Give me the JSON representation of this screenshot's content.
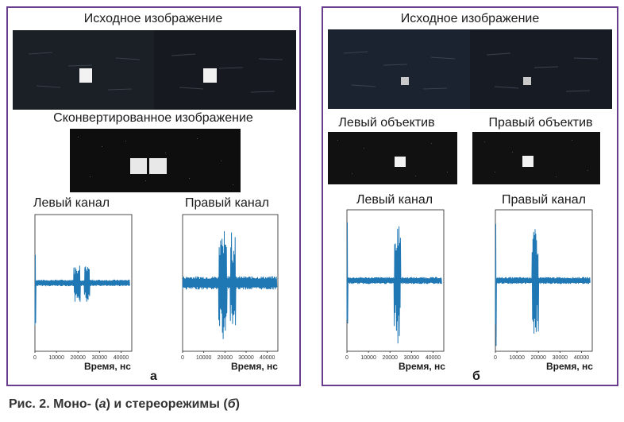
{
  "panel_a": {
    "source_title": "Исходное изображение",
    "converted_title": "Сконвертированное  изображение",
    "left_channel_title": "Левый канал",
    "right_channel_title": "Правый канал",
    "x_label": "Время, нс",
    "letter": "а"
  },
  "panel_b": {
    "source_title": "Исходное изображение",
    "left_lens_title": "Левый объектив",
    "right_lens_title": "Правый объектив",
    "left_channel_title": "Левый канал",
    "right_channel_title": "Правый канал",
    "x_label": "Время, нс",
    "letter": "б"
  },
  "caption": {
    "prefix": "Рис. 2. Моно- (",
    "a": "а",
    "middle": ") и стереорежимы (",
    "b": "б",
    "suffix": ")"
  },
  "colors": {
    "frame": "#6a3d8f",
    "signal": "#1f77b4"
  },
  "chart_data": [
    {
      "type": "line",
      "panel": "а",
      "title": "Левый канал",
      "xlabel": "Время, нс",
      "xlim": [
        0,
        45000
      ],
      "x_ticks": [
        "0",
        "10000",
        "20000",
        "30000",
        "40000"
      ],
      "series": [
        {
          "bursts": [
            [
              0,
              500,
              1.0
            ],
            [
              18000,
              21000,
              0.38
            ],
            [
              23000,
              25500,
              0.3
            ]
          ],
          "baseline_amp": 0.05,
          "end": 44000
        }
      ]
    },
    {
      "type": "line",
      "panel": "а",
      "title": "Правый канал",
      "xlabel": "Время, нс",
      "xlim": [
        0,
        45000
      ],
      "x_ticks": [
        "0",
        "10000",
        "20000",
        "30000",
        "40000"
      ],
      "series": [
        {
          "bursts": [
            [
              17000,
              21000,
              0.95
            ],
            [
              22500,
              25000,
              0.9
            ]
          ],
          "baseline_amp": 0.1,
          "end": 44500
        }
      ]
    },
    {
      "type": "line",
      "panel": "б",
      "title": "Левый канал",
      "xlabel": "Время, нс",
      "xlim": [
        0,
        45000
      ],
      "x_ticks": [
        "0",
        "10000",
        "20000",
        "30000",
        "40000"
      ],
      "series": [
        {
          "bursts": [
            [
              0,
              500,
              1.0
            ],
            [
              22000,
              25000,
              0.95
            ]
          ],
          "baseline_amp": 0.05,
          "end": 44000
        }
      ]
    },
    {
      "type": "line",
      "panel": "б",
      "title": "Правый канал",
      "xlabel": "Время, нс",
      "xlim": [
        0,
        45000
      ],
      "x_ticks": [
        "0",
        "10000",
        "20000",
        "30000",
        "40000"
      ],
      "series": [
        {
          "bursts": [
            [
              0,
              500,
              1.0
            ],
            [
              17000,
              20000,
              0.95
            ]
          ],
          "baseline_amp": 0.05,
          "end": 44000
        }
      ]
    }
  ]
}
